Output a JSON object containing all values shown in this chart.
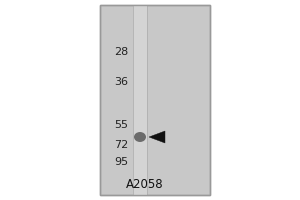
{
  "bg_color": "#ffffff",
  "blot_bg": "#c8c8c8",
  "lane_color": "#d4d4d4",
  "title": "A2058",
  "title_fontsize": 8.5,
  "mw_markers": [
    95,
    72,
    55,
    36,
    28
  ],
  "mw_fontsize": 8,
  "band_color": "#606060",
  "arrow_color": "#111111",
  "border_color": "#999999"
}
